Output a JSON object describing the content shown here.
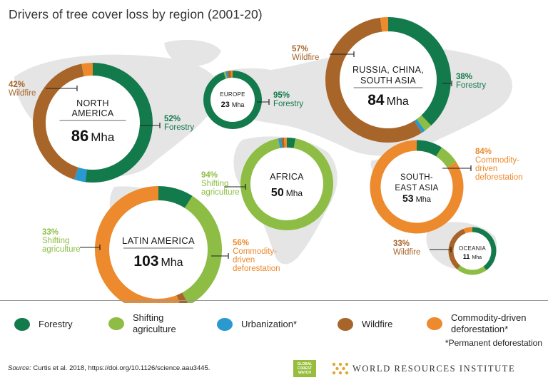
{
  "title": "Drivers of tree cover loss by region (2001-20)",
  "colors": {
    "forestry": "#137a4c",
    "shifting_agriculture": "#8dbd44",
    "urbanization": "#2a99cf",
    "wildfire": "#a8652a",
    "commodity_driven": "#ec8a2d",
    "map": "#e5e5e5"
  },
  "chart_data": {
    "type": "donut",
    "unit": "Mha",
    "categories": [
      "Forestry",
      "Shifting agriculture",
      "Urbanization*",
      "Wildfire",
      "Commodity-driven deforestation*"
    ],
    "regions": [
      {
        "id": "north-america",
        "name_lines": [
          "NORTH",
          "AMERICA"
        ],
        "total": "86",
        "unit": "Mha",
        "shares": {
          "forestry": 52,
          "shifting_agriculture": 0,
          "urbanization": 3,
          "wildfire": 42,
          "commodity_driven": 3
        }
      },
      {
        "id": "europe",
        "name_lines": [
          "EUROPE"
        ],
        "total": "23",
        "unit": "Mha",
        "shares": {
          "forestry": 95,
          "shifting_agriculture": 1,
          "urbanization": 1,
          "wildfire": 2,
          "commodity_driven": 1
        }
      },
      {
        "id": "russia-china-south-asia",
        "name_lines": [
          "RUSSIA, CHINA,",
          "SOUTH ASIA"
        ],
        "total": "84",
        "unit": "Mha",
        "shares": {
          "forestry": 38,
          "shifting_agriculture": 2,
          "urbanization": 1,
          "wildfire": 57,
          "commodity_driven": 2
        }
      },
      {
        "id": "africa",
        "name_lines": [
          "AFRICA"
        ],
        "total": "50",
        "unit": "Mha",
        "shares": {
          "forestry": 3,
          "shifting_agriculture": 94,
          "urbanization": 1,
          "wildfire": 1,
          "commodity_driven": 1
        }
      },
      {
        "id": "latin-america",
        "name_lines": [
          "LATIN AMERICA"
        ],
        "total": "103",
        "unit": "Mha",
        "shares": {
          "forestry": 9,
          "shifting_agriculture": 33,
          "urbanization": 0,
          "wildfire": 2,
          "commodity_driven": 56
        }
      },
      {
        "id": "southeast-asia",
        "name_lines": [
          "SOUTH-",
          "EAST ASIA"
        ],
        "total": "53",
        "unit": "Mha",
        "shares": {
          "forestry": 9,
          "shifting_agriculture": 7,
          "urbanization": 0,
          "wildfire": 0,
          "commodity_driven": 84
        }
      },
      {
        "id": "oceania",
        "name_lines": [
          "OCEANIA"
        ],
        "total": "11",
        "unit": "Mha",
        "shares": {
          "forestry": 40,
          "shifting_agriculture": 21,
          "urbanization": 0,
          "wildfire": 33,
          "commodity_driven": 6
        }
      }
    ],
    "annotations": [
      {
        "region": "north-america",
        "pct": "42%",
        "lines": [
          "Wildfire"
        ],
        "color": "wildfire"
      },
      {
        "region": "north-america",
        "pct": "52%",
        "lines": [
          "Forestry"
        ],
        "color": "forestry"
      },
      {
        "region": "europe",
        "pct": "95%",
        "lines": [
          "Forestry"
        ],
        "color": "forestry"
      },
      {
        "region": "russia-china-south-asia",
        "pct": "57%",
        "lines": [
          "Wildfire"
        ],
        "color": "wildfire"
      },
      {
        "region": "russia-china-south-asia",
        "pct": "38%",
        "lines": [
          "Forestry"
        ],
        "color": "forestry"
      },
      {
        "region": "africa",
        "pct": "94%",
        "lines": [
          "Shifting",
          "agriculture"
        ],
        "color": "shifting_agriculture"
      },
      {
        "region": "latin-america",
        "pct": "33%",
        "lines": [
          "Shifting",
          "agriculture"
        ],
        "color": "shifting_agriculture"
      },
      {
        "region": "latin-america",
        "pct": "56%",
        "lines": [
          "Commodity-",
          "driven",
          "deforestation"
        ],
        "color": "commodity_driven"
      },
      {
        "region": "southeast-asia",
        "pct": "84%",
        "lines": [
          "Commodity-",
          "driven",
          "deforestation"
        ],
        "color": "commodity_driven"
      },
      {
        "region": "oceania",
        "pct": "33%",
        "lines": [
          "Wildfire"
        ],
        "color": "wildfire"
      }
    ]
  },
  "legend": [
    {
      "key": "forestry",
      "label": "Forestry"
    },
    {
      "key": "shifting_agriculture",
      "label": "Shifting agriculture"
    },
    {
      "key": "urbanization",
      "label": "Urbanization*"
    },
    {
      "key": "wildfire",
      "label": "Wildfire"
    },
    {
      "key": "commodity_driven",
      "label": "Commodity-driven deforestation*"
    }
  ],
  "footnote": "*Permanent deforestation",
  "source": {
    "label": "Source:",
    "text": " Curtis et al. 2018, https://doi.org/10.1126/science.aau3445."
  },
  "logos": {
    "gfw": "GLOBAL FOREST WATCH",
    "wri": "WORLD RESOURCES INSTITUTE"
  }
}
